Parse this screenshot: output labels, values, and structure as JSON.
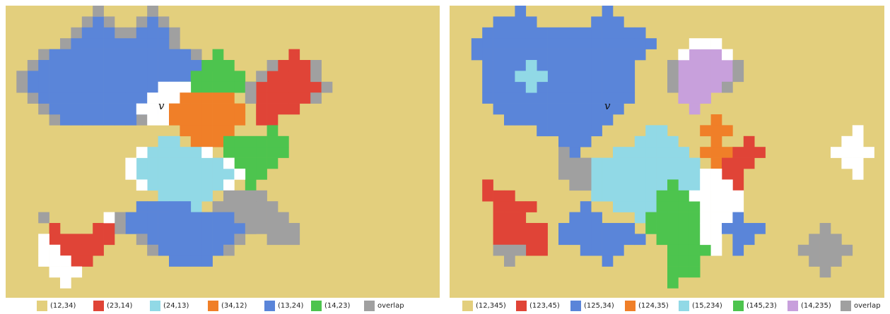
{
  "colors": {
    "background": "#e3cf7d",
    "red": "#e04437",
    "lightblue": "#91d9e6",
    "orange": "#f07f28",
    "blue": "#5a85d9",
    "green": "#4dc44e",
    "overlap": "#a0a0a0",
    "purple": "#c8a0dc",
    "white": "#ffffff"
  },
  "left_panel": {
    "vertex_label": "v",
    "legend": [
      {
        "label": "(12,34)",
        "color": "#e3cf7d"
      },
      {
        "label": "(23,14)",
        "color": "#e04437"
      },
      {
        "label": "(24,13)",
        "color": "#91d9e6"
      },
      {
        "label": "(34,12)",
        "color": "#f07f28"
      },
      {
        "label": "(13,24)",
        "color": "#5a85d9"
      },
      {
        "label": "(14,23)",
        "color": "#4dc44e"
      },
      {
        "label": "overlap",
        "color": "#a0a0a0"
      }
    ]
  },
  "right_panel": {
    "vertex_label": "v",
    "legend": [
      {
        "label": "(12,345)",
        "color": "#e3cf7d"
      },
      {
        "label": "(123,45)",
        "color": "#e04437"
      },
      {
        "label": "(125,34)",
        "color": "#5a85d9"
      },
      {
        "label": "(124,35)",
        "color": "#f07f28"
      },
      {
        "label": "(15,234)",
        "color": "#91d9e6"
      },
      {
        "label": "(145,23)",
        "color": "#4dc44e"
      },
      {
        "label": "(14,235)",
        "color": "#c8a0dc"
      },
      {
        "label": "overlap",
        "color": "#a0a0a0"
      }
    ]
  }
}
